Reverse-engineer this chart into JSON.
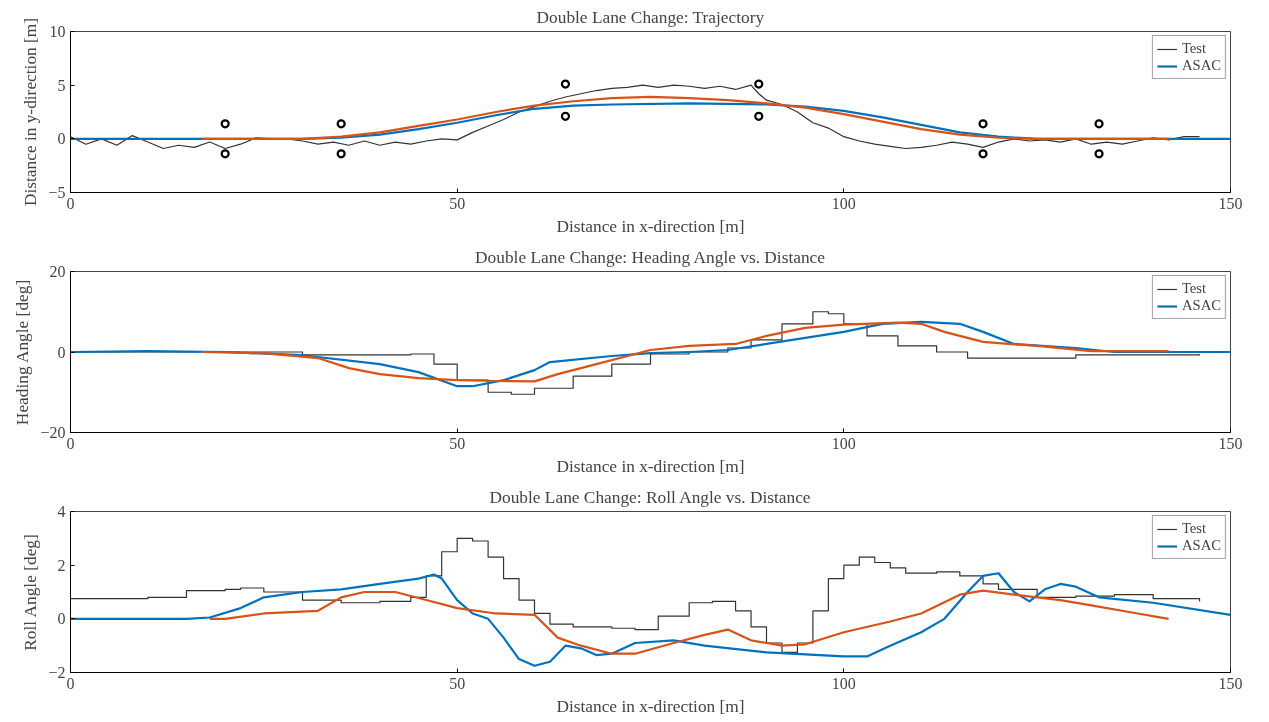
{
  "chart_data": [
    {
      "type": "line",
      "title": "Double Lane Change: Trajectory",
      "xlabel": "Distance in x-direction [m]",
      "ylabel": "Distance in y-direction [m]",
      "xlim": [
        0,
        150
      ],
      "xticks": [
        0,
        50,
        100,
        150
      ],
      "ylim": [
        -5,
        10
      ],
      "yticks": [
        -5,
        0,
        5,
        10
      ],
      "grid": false,
      "legend": "top right",
      "series": [
        {
          "name": "Test",
          "type": "line",
          "color": "#333333",
          "x": [
            0,
            2,
            4,
            6,
            8,
            10,
            12,
            14,
            16,
            18,
            20,
            22,
            24,
            26,
            28,
            30,
            32,
            34,
            36,
            38,
            40,
            42,
            44,
            46,
            48,
            50,
            52,
            54,
            56,
            58,
            60,
            62,
            64,
            66,
            68,
            70,
            72,
            74,
            76,
            78,
            80,
            82,
            84,
            86,
            88,
            89,
            90,
            92,
            94,
            96,
            98,
            100,
            102,
            104,
            106,
            108,
            110,
            112,
            114,
            116,
            118,
            120,
            122,
            124,
            126,
            128,
            130,
            132,
            134,
            136,
            138,
            140,
            142,
            144,
            146
          ],
          "values": [
            0.2,
            -0.5,
            0,
            -0.6,
            0.3,
            -0.3,
            -0.9,
            -0.6,
            -0.8,
            -0.3,
            -0.9,
            -0.5,
            0.1,
            0,
            0,
            -0.2,
            -0.5,
            -0.3,
            -0.6,
            -0.2,
            -0.6,
            -0.3,
            -0.5,
            -0.2,
            0,
            -0.1,
            0.6,
            1.2,
            1.8,
            2.5,
            3.0,
            3.5,
            3.9,
            4.2,
            4.5,
            4.7,
            4.8,
            5.0,
            4.8,
            5.0,
            4.9,
            4.7,
            4.9,
            4.6,
            5.0,
            4.2,
            3.6,
            3.2,
            2.5,
            1.5,
            1.0,
            0.2,
            -0.2,
            -0.5,
            -0.7,
            -0.9,
            -0.8,
            -0.6,
            -0.3,
            -0.5,
            -0.8,
            -0.3,
            0,
            -0.2,
            -0.1,
            -0.3,
            0,
            -0.5,
            -0.3,
            -0.5,
            -0.2,
            0.1,
            -0.1,
            0.2,
            0.2
          ]
        },
        {
          "name": "ASAC",
          "color": "#0072bd",
          "x": [
            0,
            30,
            35,
            40,
            45,
            50,
            55,
            60,
            65,
            70,
            80,
            90,
            95,
            100,
            105,
            110,
            115,
            120,
            125,
            150
          ],
          "values": [
            0,
            0,
            0.1,
            0.4,
            0.9,
            1.5,
            2.2,
            2.8,
            3.1,
            3.2,
            3.3,
            3.2,
            3.0,
            2.6,
            2.0,
            1.3,
            0.6,
            0.2,
            0,
            0
          ]
        },
        {
          "color": "#d95319",
          "x": [
            17,
            30,
            35,
            40,
            45,
            50,
            55,
            60,
            65,
            70,
            75,
            80,
            85,
            90,
            95,
            100,
            105,
            110,
            115,
            120,
            125,
            142
          ],
          "values": [
            0,
            0,
            0.2,
            0.6,
            1.2,
            1.8,
            2.5,
            3.1,
            3.5,
            3.8,
            3.9,
            3.8,
            3.6,
            3.3,
            2.9,
            2.3,
            1.6,
            0.9,
            0.4,
            0.1,
            0,
            0
          ]
        },
        {
          "type": "scatter",
          "marker": "circle",
          "color": "#000000",
          "x": [
            20,
            20,
            35,
            35,
            64,
            64,
            89,
            89,
            118,
            118,
            133,
            133
          ],
          "values": [
            1.4,
            -1.4,
            1.4,
            -1.4,
            5.1,
            2.1,
            5.1,
            2.1,
            1.4,
            -1.4,
            1.4,
            -1.4
          ]
        }
      ]
    },
    {
      "type": "line",
      "title": "Double Lane Change: Heading Angle vs. Distance",
      "xlabel": "Distance in x-direction [m]",
      "ylabel": "Heading Angle [deg]",
      "xlim": [
        0,
        150
      ],
      "xticks": [
        0,
        50,
        100,
        150
      ],
      "ylim": [
        -20,
        20
      ],
      "yticks": [
        -20,
        0,
        20
      ],
      "grid": false,
      "legend": "top right",
      "series": [
        {
          "name": "Test",
          "type": "step",
          "color": "#333333",
          "x": [
            0,
            30,
            44,
            47,
            50,
            54,
            57,
            60,
            65,
            70,
            75,
            80,
            85,
            88,
            92,
            96,
            98,
            100,
            103,
            107,
            112,
            116,
            120,
            130,
            146
          ],
          "values": [
            0,
            -0.7,
            -0.5,
            -3,
            -7,
            -10,
            -10.5,
            -9,
            -6,
            -3,
            -0.5,
            0,
            1,
            3,
            7,
            10,
            9.5,
            7,
            4,
            1.5,
            0,
            -1.5,
            -1.5,
            -0.7,
            -0.5
          ]
        },
        {
          "name": "ASAC",
          "color": "#0072bd",
          "x": [
            0,
            10,
            20,
            30,
            40,
            45,
            50,
            52,
            56,
            60,
            62,
            70,
            75,
            80,
            85,
            90,
            100,
            105,
            110,
            115,
            118,
            122,
            130,
            135,
            150
          ],
          "values": [
            0,
            0.2,
            0,
            -0.8,
            -3,
            -5,
            -8.5,
            -8.5,
            -7,
            -4.5,
            -2.5,
            -1,
            -0.3,
            0,
            0.5,
            2,
            5,
            7,
            7.5,
            7,
            5,
            2,
            1,
            0,
            0
          ]
        },
        {
          "color": "#d95319",
          "x": [
            17,
            25,
            32,
            36,
            40,
            45,
            50,
            55,
            60,
            63,
            68,
            75,
            80,
            86,
            90,
            95,
            100,
            107,
            110,
            113,
            118,
            125,
            132,
            142
          ],
          "values": [
            0,
            -0.3,
            -1.5,
            -4,
            -5.5,
            -6.5,
            -7,
            -7.2,
            -7.3,
            -5.5,
            -3,
            0.5,
            1.5,
            2,
            4,
            6,
            6.8,
            7.3,
            7,
            5,
            2.5,
            1.5,
            0.2,
            0.2
          ]
        }
      ]
    },
    {
      "type": "line",
      "title": "Double Lane Change: Roll Angle vs. Distance",
      "xlabel": "Distance in x-direction [m]",
      "ylabel": "Roll Angle [deg]",
      "xlim": [
        0,
        150
      ],
      "xticks": [
        0,
        50,
        100,
        150
      ],
      "ylim": [
        -2,
        4
      ],
      "yticks": [
        -2,
        0,
        2,
        4
      ],
      "grid": false,
      "legend": "top right",
      "series": [
        {
          "name": "Test",
          "type": "step",
          "color": "#333333",
          "x": [
            0,
            10,
            15,
            20,
            22,
            25,
            30,
            35,
            40,
            44,
            46,
            48,
            50,
            52,
            54,
            56,
            58,
            60,
            62,
            65,
            70,
            73,
            76,
            80,
            83,
            86,
            88,
            90,
            92,
            94,
            96,
            98,
            100,
            102,
            104,
            106,
            108,
            112,
            115,
            118,
            120,
            125,
            130,
            135,
            140,
            146
          ],
          "values": [
            0.75,
            0.8,
            1.05,
            1.1,
            1.15,
            1.0,
            0.7,
            0.6,
            0.65,
            0.8,
            1.6,
            2.5,
            3.0,
            2.9,
            2.3,
            1.5,
            0.7,
            0.2,
            -0.2,
            -0.3,
            -0.35,
            -0.4,
            0.1,
            0.6,
            0.65,
            0.3,
            -0.3,
            -0.9,
            -1.25,
            -0.9,
            0.3,
            1.5,
            2.0,
            2.3,
            2.1,
            1.9,
            1.7,
            1.75,
            1.6,
            1.3,
            1.1,
            0.8,
            0.85,
            0.9,
            0.75,
            0.65
          ]
        },
        {
          "name": "ASAC",
          "color": "#0072bd",
          "x": [
            0,
            15,
            18,
            22,
            25,
            30,
            35,
            40,
            45,
            47,
            48,
            50,
            52,
            54,
            56,
            58,
            60,
            62,
            64,
            66,
            68,
            70,
            73,
            78,
            82,
            90,
            100,
            103,
            106,
            110,
            113,
            116,
            118,
            120,
            122,
            124,
            126,
            128,
            130,
            133,
            140,
            150
          ],
          "values": [
            0,
            0,
            0.05,
            0.4,
            0.8,
            1.0,
            1.1,
            1.3,
            1.5,
            1.65,
            1.5,
            0.7,
            0.2,
            0,
            -0.7,
            -1.5,
            -1.75,
            -1.6,
            -1.0,
            -1.1,
            -1.35,
            -1.3,
            -0.9,
            -0.8,
            -1.0,
            -1.25,
            -1.4,
            -1.4,
            -1.0,
            -0.5,
            0,
            1.0,
            1.6,
            1.7,
            1.0,
            0.65,
            1.1,
            1.3,
            1.2,
            0.8,
            0.6,
            0.15
          ]
        },
        {
          "color": "#d95319",
          "x": [
            18,
            20,
            25,
            32,
            35,
            38,
            42,
            46,
            50,
            55,
            60,
            63,
            66,
            70,
            73,
            78,
            82,
            85,
            88,
            92,
            95,
            100,
            106,
            110,
            115,
            118,
            122,
            128,
            132,
            138,
            142
          ],
          "values": [
            0,
            0,
            0.2,
            0.3,
            0.8,
            1.0,
            1.0,
            0.7,
            0.4,
            0.2,
            0.15,
            -0.7,
            -1.0,
            -1.3,
            -1.3,
            -0.9,
            -0.6,
            -0.4,
            -0.8,
            -1.0,
            -0.95,
            -0.5,
            -0.1,
            0.2,
            0.9,
            1.05,
            0.9,
            0.7,
            0.5,
            0.2,
            0
          ]
        }
      ]
    }
  ]
}
